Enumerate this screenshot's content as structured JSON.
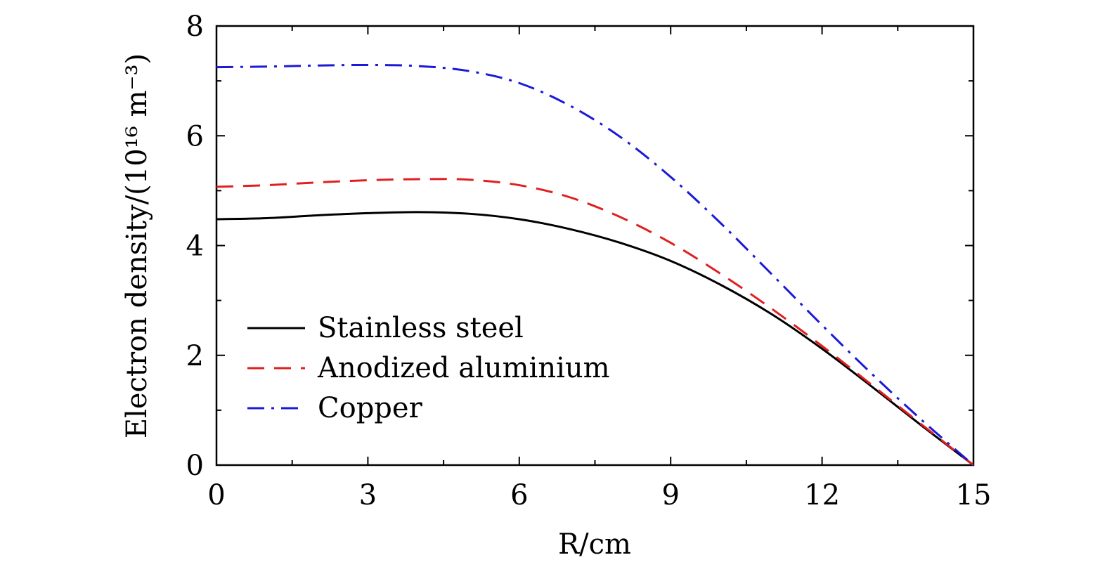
{
  "chart_data": {
    "type": "line",
    "xlabel": "R/cm",
    "ylabel": "Electron density/(10¹⁶ m⁻³)",
    "xlim": [
      0,
      15
    ],
    "ylim": [
      0,
      8
    ],
    "xticks": [
      "0",
      "3",
      "6",
      "9",
      "12",
      "15"
    ],
    "yticks": [
      "0",
      "2",
      "4",
      "6",
      "8"
    ],
    "grid": false,
    "legend_position": "bottom-left",
    "series": [
      {
        "name": "Stainless steel",
        "color": "#000000",
        "dash": "solid",
        "x": [
          0,
          1,
          2,
          3,
          4,
          5,
          6,
          7,
          8,
          9,
          10,
          11,
          12,
          13,
          14,
          15
        ],
        "y": [
          4.48,
          4.5,
          4.55,
          4.59,
          4.61,
          4.58,
          4.48,
          4.3,
          4.05,
          3.72,
          3.28,
          2.75,
          2.12,
          1.42,
          0.7,
          0.0
        ]
      },
      {
        "name": "Anodized aluminium",
        "color": "#e02020",
        "dash": "dashed",
        "x": [
          0,
          1,
          2,
          3,
          4,
          5,
          6,
          7,
          8,
          9,
          10,
          11,
          12,
          13,
          14,
          15
        ],
        "y": [
          5.07,
          5.1,
          5.15,
          5.19,
          5.21,
          5.2,
          5.1,
          4.88,
          4.52,
          4.05,
          3.48,
          2.85,
          2.17,
          1.45,
          0.72,
          0.0
        ]
      },
      {
        "name": "Copper",
        "color": "#1a1ad8",
        "dash": "dashdot",
        "x": [
          0,
          1,
          2,
          3,
          4,
          5,
          6,
          7,
          8,
          9,
          10,
          11,
          12,
          13,
          14,
          15
        ],
        "y": [
          7.25,
          7.26,
          7.28,
          7.29,
          7.27,
          7.18,
          6.96,
          6.55,
          5.98,
          5.25,
          4.4,
          3.48,
          2.55,
          1.65,
          0.8,
          0.0
        ]
      }
    ]
  }
}
